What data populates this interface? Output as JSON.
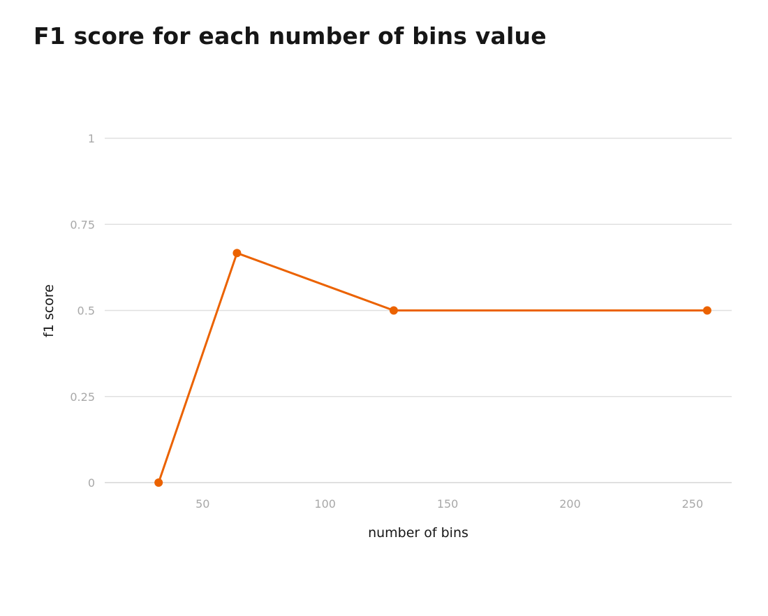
{
  "chart_data": {
    "type": "line",
    "title": "F1 score for each number of bins value",
    "xlabel": "number of bins",
    "ylabel": "f1 score",
    "x_ticks": [
      50,
      100,
      150,
      200,
      250
    ],
    "y_ticks": [
      0,
      0.25,
      0.5,
      0.75,
      1
    ],
    "y_tick_labels": [
      "0",
      "0.25",
      "0.5",
      "0.75",
      "1"
    ],
    "xlim": [
      10,
      266
    ],
    "ylim": [
      0,
      1
    ],
    "grid": "horizontal",
    "series": [
      {
        "color": "#eb6200",
        "x": [
          32,
          64,
          128,
          256
        ],
        "y": [
          0,
          0.6667,
          0.5,
          0.5
        ]
      }
    ]
  }
}
